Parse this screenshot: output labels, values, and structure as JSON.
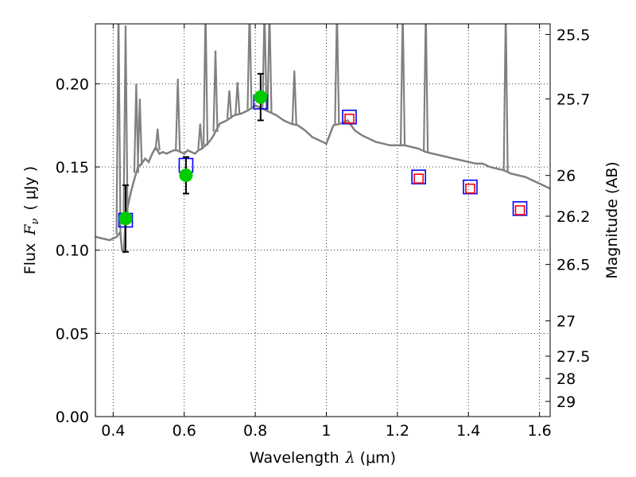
{
  "chart_data": {
    "type": "scatter",
    "title": "",
    "xlabel": "Wavelength",
    "xlabel_symbol": "λ",
    "xlabel_unit": "(μm)",
    "ylabel": "Flux",
    "ylabel_symbol": "F",
    "ylabel_subscript": "ν",
    "ylabel_unit": "( μJy )",
    "y2label": "Magnitude (AB)",
    "xlim": [
      0.35,
      1.63
    ],
    "ylim": [
      0.0,
      0.236
    ],
    "grid": true,
    "xticks": [
      0.4,
      0.6,
      0.8,
      1.0,
      1.2,
      1.4,
      1.6
    ],
    "xtick_labels": [
      "0.4",
      "0.6",
      "0.8",
      "1",
      "1.2",
      "1.4",
      "1.6"
    ],
    "yticks": [
      0.0,
      0.05,
      0.1,
      0.15,
      0.2
    ],
    "ytick_labels": [
      "0.00",
      "0.05",
      "0.10",
      "0.15",
      "0.20"
    ],
    "magnitude_ticks": [
      {
        "label": "25.5",
        "flux": 0.2296
      },
      {
        "label": "25.7",
        "flux": 0.1909
      },
      {
        "label": "26",
        "flux": 0.1449
      },
      {
        "label": "26.2",
        "flux": 0.1204
      },
      {
        "label": "26.5",
        "flux": 0.0914
      },
      {
        "label": "27",
        "flux": 0.0575
      },
      {
        "label": "27.5",
        "flux": 0.0363
      },
      {
        "label": "28",
        "flux": 0.0229
      },
      {
        "label": "29",
        "flux": 0.0091
      }
    ],
    "model_spectrum": {
      "color": "#808080",
      "x": [
        0.35,
        0.37,
        0.39,
        0.41,
        0.42,
        0.425,
        0.43,
        0.435,
        0.44,
        0.45,
        0.46,
        0.47,
        0.48,
        0.49,
        0.5,
        0.51,
        0.52,
        0.53,
        0.54,
        0.55,
        0.56,
        0.57,
        0.58,
        0.59,
        0.6,
        0.61,
        0.62,
        0.63,
        0.64,
        0.65,
        0.66,
        0.67,
        0.68,
        0.69,
        0.7,
        0.72,
        0.74,
        0.76,
        0.78,
        0.8,
        0.82,
        0.84,
        0.86,
        0.88,
        0.9,
        0.92,
        0.94,
        0.96,
        0.98,
        1.0,
        1.02,
        1.04,
        1.06,
        1.08,
        1.1,
        1.12,
        1.14,
        1.16,
        1.18,
        1.2,
        1.22,
        1.24,
        1.26,
        1.28,
        1.3,
        1.32,
        1.34,
        1.36,
        1.38,
        1.4,
        1.42,
        1.44,
        1.46,
        1.48,
        1.5,
        1.52,
        1.54,
        1.56,
        1.58,
        1.6,
        1.62,
        1.63
      ],
      "y": [
        0.108,
        0.107,
        0.106,
        0.108,
        0.111,
        0.1,
        0.099,
        0.12,
        0.125,
        0.135,
        0.143,
        0.15,
        0.152,
        0.155,
        0.153,
        0.158,
        0.162,
        0.158,
        0.159,
        0.158,
        0.159,
        0.16,
        0.16,
        0.159,
        0.158,
        0.16,
        0.159,
        0.158,
        0.16,
        0.161,
        0.163,
        0.165,
        0.168,
        0.172,
        0.176,
        0.178,
        0.181,
        0.182,
        0.184,
        0.187,
        0.185,
        0.183,
        0.181,
        0.178,
        0.176,
        0.175,
        0.172,
        0.168,
        0.166,
        0.164,
        0.175,
        0.176,
        0.178,
        0.172,
        0.169,
        0.167,
        0.165,
        0.164,
        0.163,
        0.163,
        0.163,
        0.162,
        0.161,
        0.159,
        0.158,
        0.157,
        0.156,
        0.155,
        0.154,
        0.153,
        0.152,
        0.152,
        0.15,
        0.149,
        0.148,
        0.146,
        0.145,
        0.144,
        0.142,
        0.14,
        0.138,
        0.137
      ]
    },
    "emission_lines": [
      {
        "x": 0.415,
        "peak": 0.236
      },
      {
        "x": 0.435,
        "peak": 0.235
      },
      {
        "x": 0.465,
        "peak": 0.2
      },
      {
        "x": 0.475,
        "peak": 0.191
      },
      {
        "x": 0.525,
        "peak": 0.173
      },
      {
        "x": 0.582,
        "peak": 0.203
      },
      {
        "x": 0.645,
        "peak": 0.176
      },
      {
        "x": 0.66,
        "peak": 0.236
      },
      {
        "x": 0.688,
        "peak": 0.22
      },
      {
        "x": 0.727,
        "peak": 0.196
      },
      {
        "x": 0.75,
        "peak": 0.201
      },
      {
        "x": 0.784,
        "peak": 0.236
      },
      {
        "x": 0.826,
        "peak": 0.236
      },
      {
        "x": 0.84,
        "peak": 0.236
      },
      {
        "x": 0.91,
        "peak": 0.208
      },
      {
        "x": 1.03,
        "peak": 0.236
      },
      {
        "x": 1.215,
        "peak": 0.236
      },
      {
        "x": 1.28,
        "peak": 0.236
      },
      {
        "x": 1.505,
        "peak": 0.236
      }
    ],
    "series": [
      {
        "marker": "square",
        "color": "#0000ff",
        "x": [
          0.435,
          0.605,
          0.815,
          1.065,
          1.26,
          1.405,
          1.545
        ],
        "y": [
          0.118,
          0.151,
          0.189,
          0.18,
          0.144,
          0.138,
          0.125
        ]
      },
      {
        "marker": "square",
        "color": "#ff0000",
        "x": [
          1.065,
          1.26,
          1.405,
          1.545
        ],
        "y": [
          0.179,
          0.143,
          0.137,
          0.124
        ]
      },
      {
        "marker": "circle",
        "color": "#00cc00",
        "x": [
          0.435,
          0.605,
          0.815
        ],
        "y": [
          0.119,
          0.145,
          0.192
        ],
        "yerr": [
          0.02,
          0.011,
          0.014
        ]
      }
    ]
  }
}
